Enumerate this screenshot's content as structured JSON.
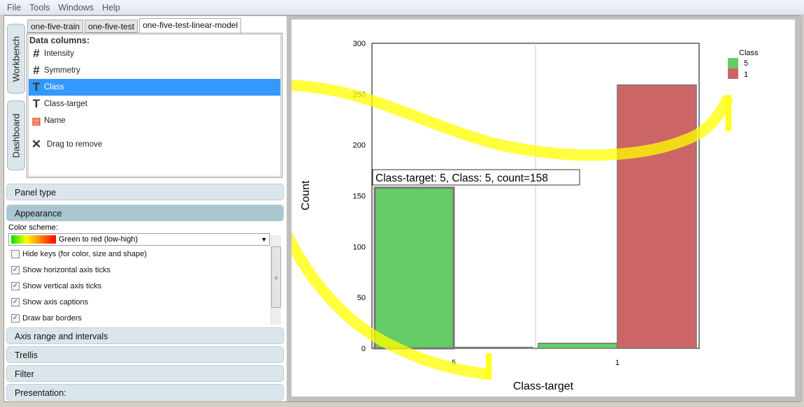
{
  "menu": [
    "File",
    "Tools",
    "Windows",
    "Help"
  ],
  "side_tabs": {
    "workbench": "Workbench",
    "dashboard": "Dashboard"
  },
  "tabs": [
    "one-five-train",
    "one-five-test",
    "one-five-test-linear-model"
  ],
  "data_columns": {
    "header": "Data columns:",
    "items": [
      {
        "icon": "hash-icon",
        "glyph": "#",
        "label": "Intensity"
      },
      {
        "icon": "hash-icon",
        "glyph": "#",
        "label": "Symmetry"
      },
      {
        "icon": "text-type-icon",
        "glyph": "T",
        "label": "Class",
        "selected": true
      },
      {
        "icon": "text-type-icon",
        "glyph": "T",
        "label": "Class-target"
      },
      {
        "icon": "name-column-icon",
        "glyph": "▤",
        "label": "Name"
      }
    ],
    "remove": "Drag to remove"
  },
  "sections": {
    "panel_type": "Panel type",
    "appearance": "Appearance",
    "axis_range": "Axis range and intervals",
    "trellis": "Trellis",
    "filter": "Filter",
    "presentation": "Presentation:"
  },
  "appearance": {
    "color_scheme_label": "Color scheme:",
    "color_scheme_value": "Green to red (low-high)",
    "options": [
      {
        "label": "Hide keys (for color, size and shape)",
        "checked": false
      },
      {
        "label": "Show horizontal axis ticks",
        "checked": true
      },
      {
        "label": "Show vertical axis ticks",
        "checked": true
      },
      {
        "label": "Show axis captions",
        "checked": true
      },
      {
        "label": "Draw bar borders",
        "checked": true
      }
    ]
  },
  "chart_data": {
    "type": "bar",
    "xlabel": "Class-target",
    "ylabel": "Count",
    "ylim": [
      0,
      300
    ],
    "yticks": [
      0,
      50,
      100,
      150,
      200,
      250,
      300
    ],
    "categories": [
      "5",
      "1"
    ],
    "series": [
      {
        "name": "5",
        "color": "#66cc66",
        "values": [
          158,
          5
        ]
      },
      {
        "name": "1",
        "color": "#cc6666",
        "values": [
          1,
          259
        ]
      }
    ],
    "legend": {
      "title": "Class",
      "position": "top-right"
    },
    "tooltip": "Class-target: 5, Class: 5, count=158"
  }
}
